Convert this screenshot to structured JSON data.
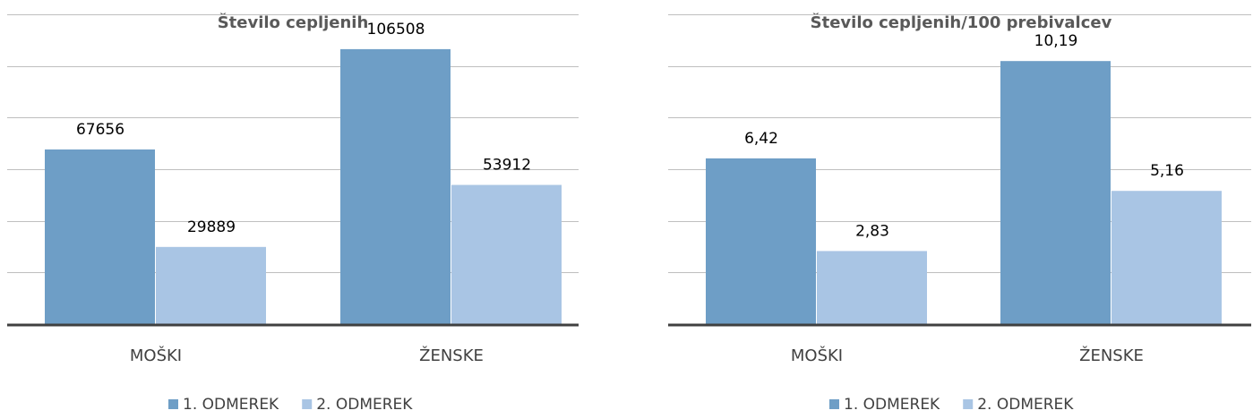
{
  "chart_data": [
    {
      "type": "bar",
      "title": "Število cepljenih",
      "categories": [
        "MOŠKI",
        "ŽENSKE"
      ],
      "series": [
        {
          "name": "1. ODMEREK",
          "values": [
            67656,
            106508
          ],
          "labels": [
            "67656",
            "106508"
          ]
        },
        {
          "name": "2. ODMEREK",
          "values": [
            29889,
            53912
          ],
          "labels": [
            "29889",
            "53912"
          ]
        }
      ],
      "ylim": [
        0,
        120000
      ],
      "ystep": 20000,
      "grid": true,
      "legend": "bottom"
    },
    {
      "type": "bar",
      "title": "Število cepljenih/100 prebivalcev",
      "categories": [
        "MOŠKI",
        "ŽENSKE"
      ],
      "series": [
        {
          "name": "1. ODMEREK",
          "values": [
            6.42,
            10.19
          ],
          "labels": [
            "6,42",
            "10,19"
          ]
        },
        {
          "name": "2. ODMEREK",
          "values": [
            2.83,
            5.16
          ],
          "labels": [
            "2,83",
            "5,16"
          ]
        }
      ],
      "ylim": [
        0,
        12
      ],
      "ystep": 2,
      "grid": true,
      "legend": "bottom"
    }
  ],
  "colors": {
    "series1": "#6e9ec6",
    "series2": "#a9c5e4",
    "grid": "#bfbfbf",
    "axis": "#404040"
  }
}
